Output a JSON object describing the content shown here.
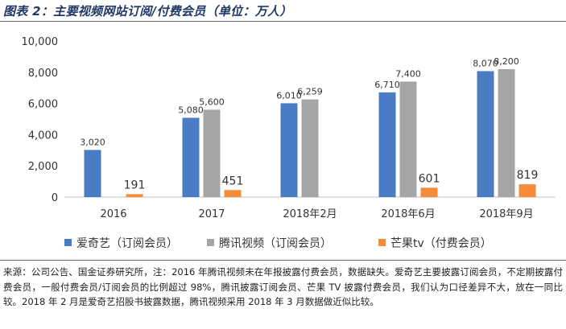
{
  "chart_data": {
    "type": "bar",
    "title": "图表 2：主要视频网站订阅/付费会员（单位：万人）",
    "categories": [
      "2016",
      "2017",
      "2018年2月",
      "2018年6月",
      "2018年9月"
    ],
    "series": [
      {
        "name": "爱奇艺（订阅会员）",
        "color": "#4a7cc4",
        "values": [
          3020,
          5080,
          6010,
          6710,
          8070
        ]
      },
      {
        "name": "腾讯视频（订阅会员）",
        "color": "#a5a5a5",
        "values": [
          null,
          5600,
          6259,
          7400,
          8200
        ]
      },
      {
        "name": "芒果tv（付费会员）",
        "color": "#f58b3b",
        "values": [
          191,
          451,
          null,
          601,
          819
        ]
      }
    ],
    "data_labels": [
      [
        "3,020",
        "5,080",
        "6,010",
        "6,710",
        "8,070"
      ],
      [
        "",
        "5,600",
        "6,259",
        "7,400",
        "8,200"
      ],
      [
        "191",
        "451",
        "",
        "601",
        "819"
      ]
    ],
    "yticks": [
      "0",
      "2,000",
      "4,000",
      "6,000",
      "8,000",
      "10,000"
    ],
    "ylim": [
      0,
      10000
    ],
    "grid": false,
    "legend_position": "bottom"
  },
  "note": "来源：公司公告、国金证券研究所，注：2016 年腾讯视频未在年报披露付费会员，数据缺失。爱奇艺主要披露订阅会员，不定期披露付费会员，一般付费会员/订阅会员的比例超过 98%，腾讯披露订阅会员、芒果 TV 披露付费会员，我们认为口径差异不大，放在一同比较。2018 年 2 月是爱奇艺招股书披露数据，腾讯视频采用 2018 年 3 月数据做近似比较。"
}
